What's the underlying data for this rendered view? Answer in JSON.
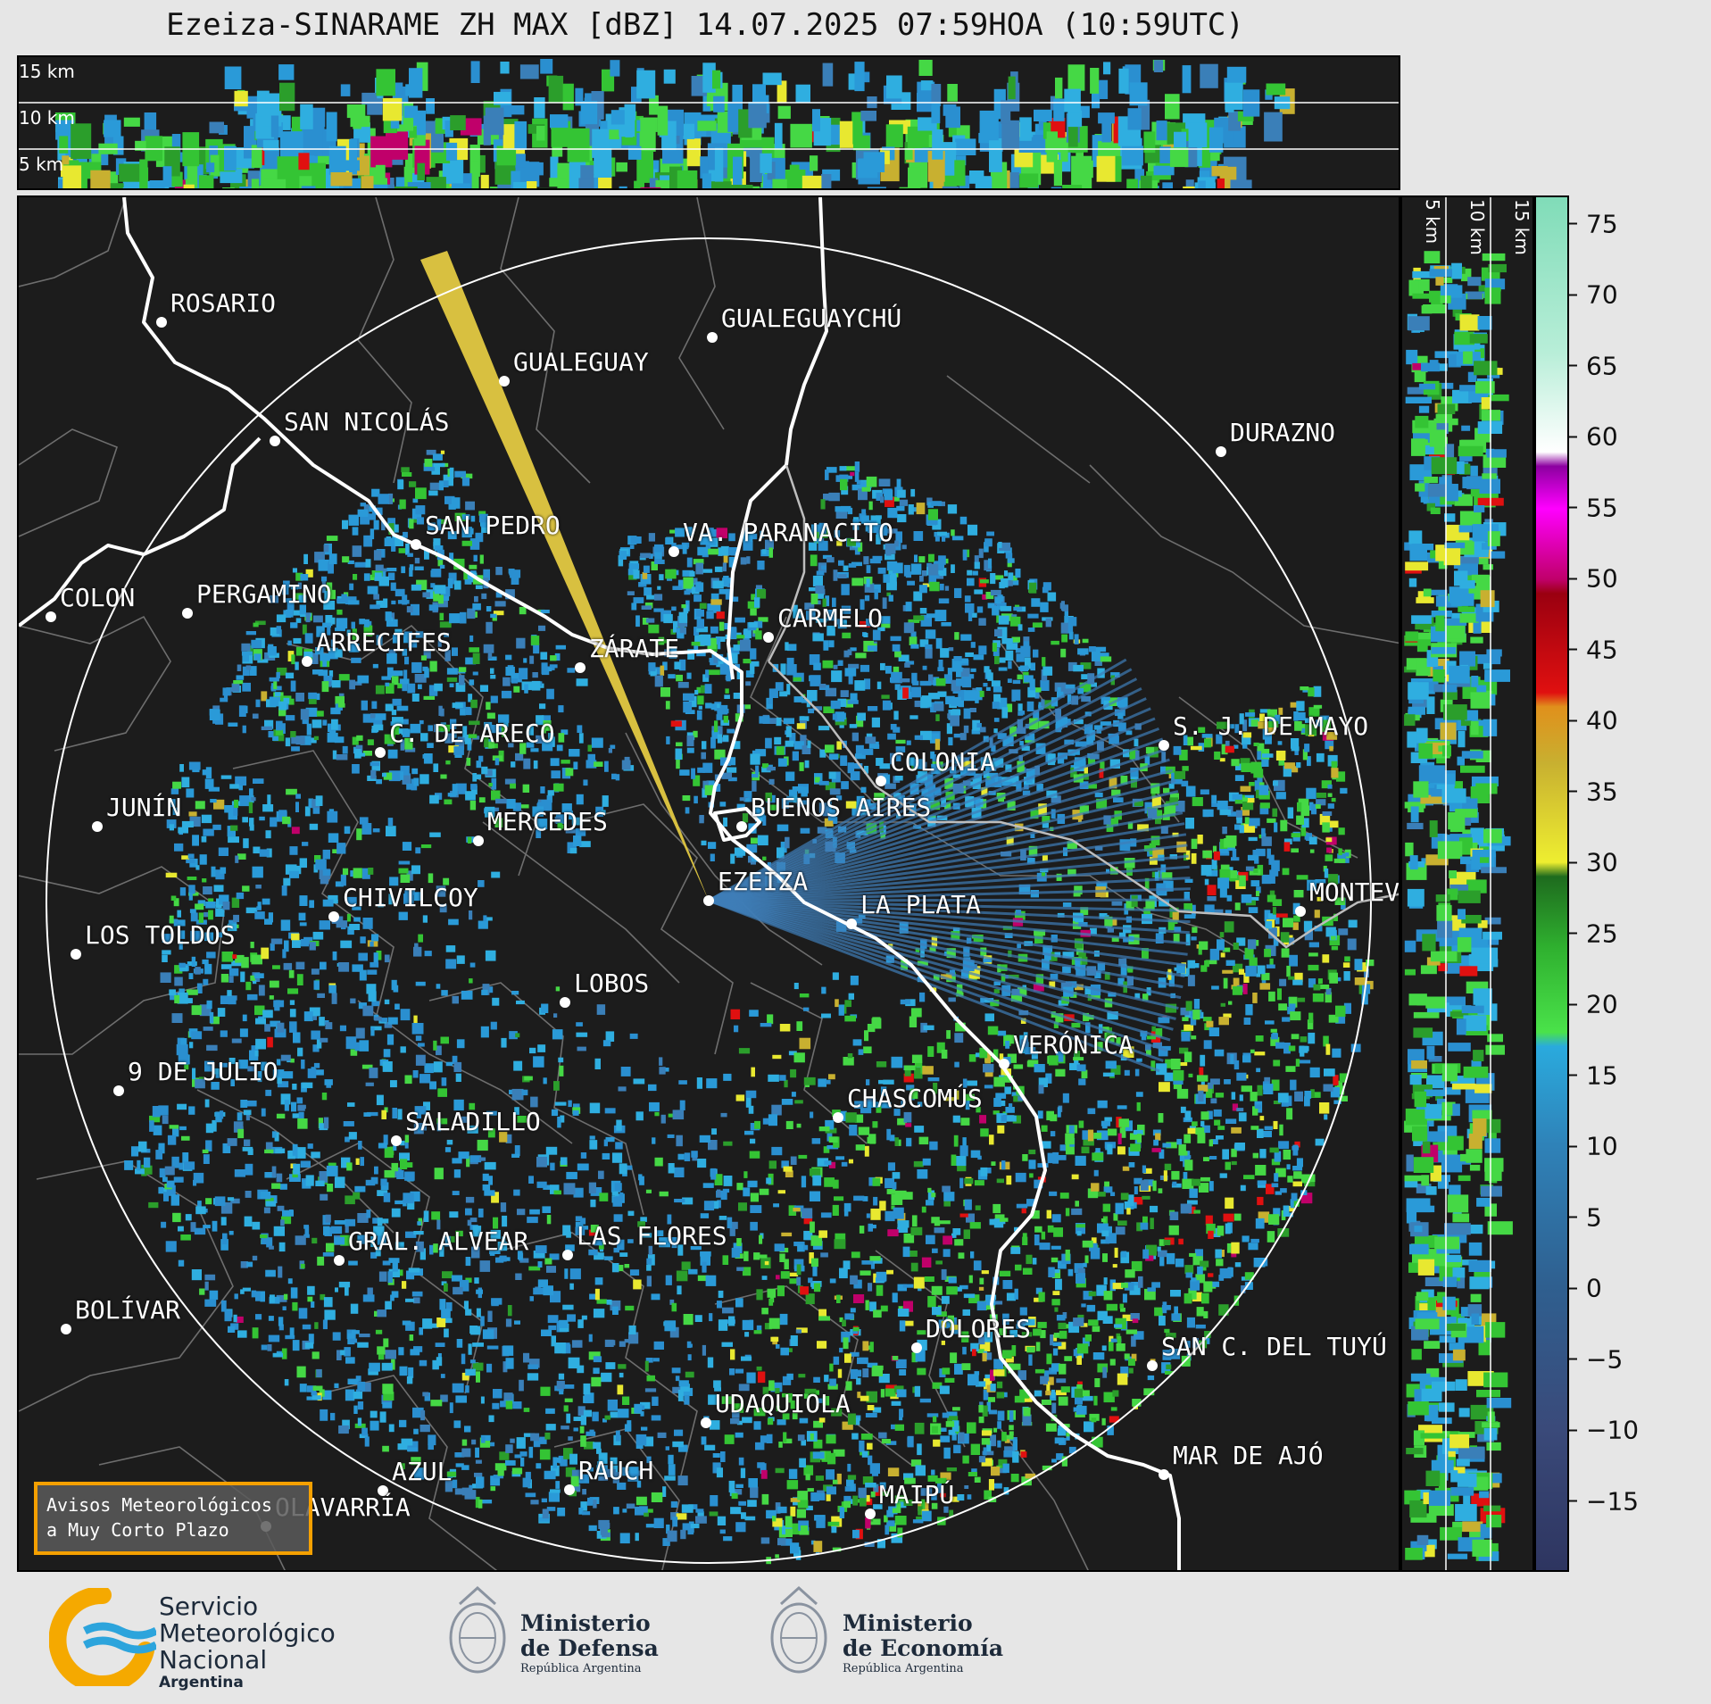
{
  "title": "Ezeiza-SINARAME ZH MAX [dBZ] 14.07.2025 07:59HOA (10:59UTC)",
  "top_panel": {
    "altitude_labels": [
      "15 km",
      "10 km",
      "5 km"
    ]
  },
  "right_panel": {
    "altitude_labels": [
      "5 km",
      "10 km",
      "15 km"
    ]
  },
  "colorbar": {
    "unit": "dBZ",
    "ticks": [
      "75",
      "70",
      "65",
      "60",
      "55",
      "50",
      "45",
      "40",
      "35",
      "30",
      "25",
      "20",
      "15",
      "10",
      "5",
      "0",
      "−5",
      "−10",
      "−15"
    ],
    "min": -20,
    "max": 77,
    "stops": [
      {
        "v": -20,
        "c": "#2e3560"
      },
      {
        "v": -10,
        "c": "#3a4a7a"
      },
      {
        "v": 0,
        "c": "#2f5f8f"
      },
      {
        "v": 10,
        "c": "#2f82b8"
      },
      {
        "v": 17,
        "c": "#2aaadd"
      },
      {
        "v": 18,
        "c": "#4ae24a"
      },
      {
        "v": 24,
        "c": "#2fb02f"
      },
      {
        "v": 29,
        "c": "#1e6b1e"
      },
      {
        "v": 30,
        "c": "#eeee30"
      },
      {
        "v": 37,
        "c": "#c8b030"
      },
      {
        "v": 41,
        "c": "#e0901c"
      },
      {
        "v": 42,
        "c": "#e01010"
      },
      {
        "v": 49,
        "c": "#9a0010"
      },
      {
        "v": 50,
        "c": "#c0006a"
      },
      {
        "v": 55,
        "c": "#ff00ff"
      },
      {
        "v": 58,
        "c": "#8c00a0"
      },
      {
        "v": 59,
        "c": "#ffffff"
      },
      {
        "v": 66,
        "c": "#b8eed8"
      },
      {
        "v": 77,
        "c": "#80dcb8"
      }
    ]
  },
  "cities": [
    {
      "name": "ROSARIO"
    },
    {
      "name": "GUALEGUAYCHÚ"
    },
    {
      "name": "GUALEGUAY"
    },
    {
      "name": "SAN NICOLÁS"
    },
    {
      "name": "DURAZNO"
    },
    {
      "name": "SAN PEDRO"
    },
    {
      "name": "VA. PARANACITO"
    },
    {
      "name": "COLON"
    },
    {
      "name": "PERGAMINO"
    },
    {
      "name": "CARMELO"
    },
    {
      "name": "ARRECIFES"
    },
    {
      "name": "ZÁRATE"
    },
    {
      "name": "C. DE ARECO"
    },
    {
      "name": "S. J. DE MAYO"
    },
    {
      "name": "COLONIA"
    },
    {
      "name": "JUNÍN"
    },
    {
      "name": "BUENOS AIRES"
    },
    {
      "name": "MERCEDES"
    },
    {
      "name": "EZEIZA"
    },
    {
      "name": "MONTEV"
    },
    {
      "name": "CHIVILCOY"
    },
    {
      "name": "LA PLATA"
    },
    {
      "name": "LOS TOLDOS"
    },
    {
      "name": "LOBOS"
    },
    {
      "name": "VERÓNICA"
    },
    {
      "name": "9 DE JULIO"
    },
    {
      "name": "CHASCOMÚS"
    },
    {
      "name": "SALADILLO"
    },
    {
      "name": "GRAL. ALVEAR"
    },
    {
      "name": "LAS FLORES"
    },
    {
      "name": "BOLÍVAR"
    },
    {
      "name": "DOLORES"
    },
    {
      "name": "SAN C. DEL TUYÚ"
    },
    {
      "name": "UDAQUIOLA"
    },
    {
      "name": "AZUL"
    },
    {
      "name": "RAUCH"
    },
    {
      "name": "MAR DE AJÓ"
    },
    {
      "name": "OLAVARRÍA"
    },
    {
      "name": "MAIPÚ"
    }
  ],
  "notice": {
    "line1": "Avisos Meteorológicos",
    "line2": "a Muy Corto Plazo"
  },
  "footer": {
    "smn": {
      "line1": "Servicio",
      "line2": "Meteorológico",
      "line3": "Nacional",
      "line4": "Argentina"
    },
    "defensa": {
      "line1": "Ministerio",
      "line2": "de Defensa",
      "line3": "República Argentina"
    },
    "economia": {
      "line1": "Ministerio",
      "line2": "de Economía",
      "line3": "República Argentina"
    }
  }
}
